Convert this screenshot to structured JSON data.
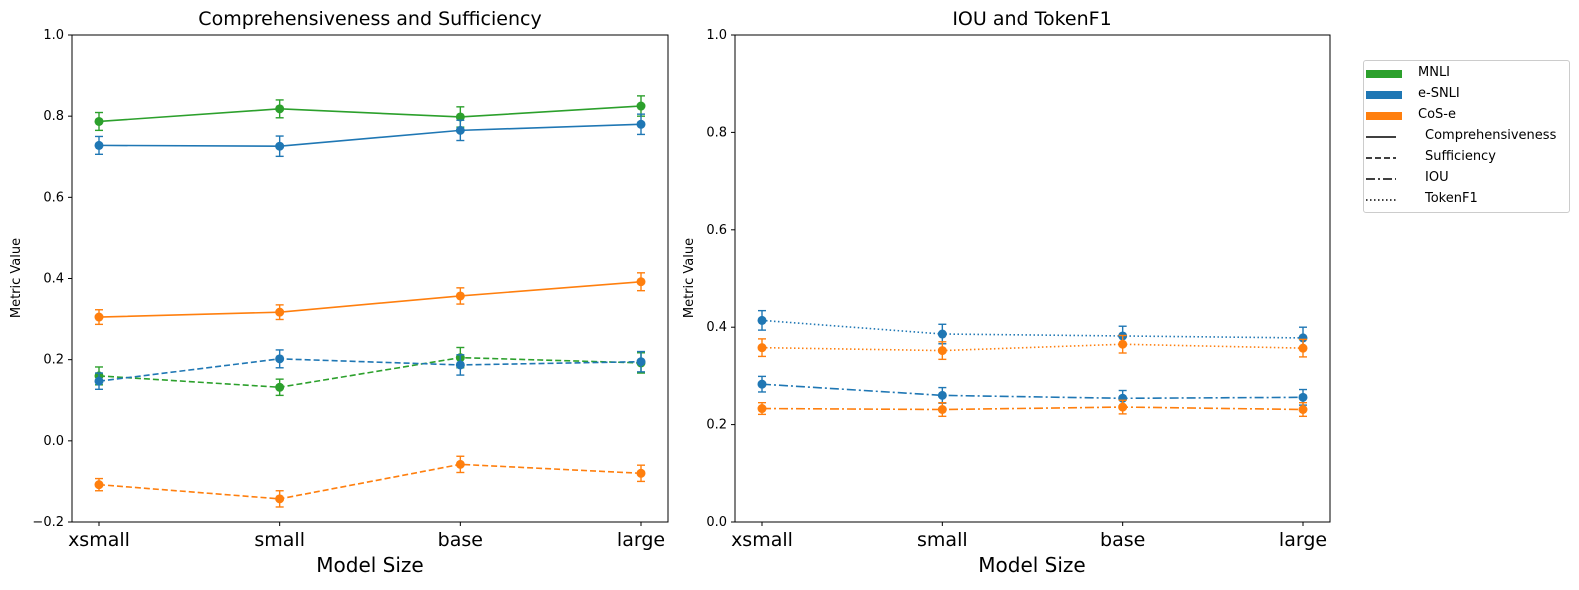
{
  "chart_data": [
    {
      "type": "line",
      "title": "Comprehensiveness and Sufficiency",
      "xlabel": "Model Size",
      "ylabel": "Metric Value",
      "categories": [
        "xsmall",
        "small",
        "base",
        "large"
      ],
      "ylim": [
        -0.2,
        1.0
      ],
      "yticks": [
        "−0.2",
        "0.0",
        "0.2",
        "0.4",
        "0.6",
        "0.8",
        "1.0"
      ],
      "ytick_values": [
        -0.2,
        0.0,
        0.2,
        0.4,
        0.6,
        0.8,
        1.0
      ],
      "grid": false,
      "series": [
        {
          "dataset": "MNLI",
          "metric": "Comprehensiveness",
          "color": "#2ca02c",
          "values": [
            0.787,
            0.818,
            0.798,
            0.825
          ],
          "errors": [
            0.022,
            0.022,
            0.025,
            0.025
          ]
        },
        {
          "dataset": "e-SNLI",
          "metric": "Comprehensiveness",
          "color": "#1f77b4",
          "values": [
            0.728,
            0.726,
            0.765,
            0.78
          ],
          "errors": [
            0.022,
            0.025,
            0.025,
            0.025
          ]
        },
        {
          "dataset": "CoS-e",
          "metric": "Comprehensiveness",
          "color": "#ff7f0e",
          "values": [
            0.305,
            0.317,
            0.357,
            0.392
          ],
          "errors": [
            0.018,
            0.018,
            0.02,
            0.022
          ]
        },
        {
          "dataset": "MNLI",
          "metric": "Sufficiency",
          "color": "#2ca02c",
          "values": [
            0.16,
            0.132,
            0.205,
            0.192
          ],
          "errors": [
            0.022,
            0.02,
            0.025,
            0.025
          ]
        },
        {
          "dataset": "e-SNLI",
          "metric": "Sufficiency",
          "color": "#1f77b4",
          "values": [
            0.147,
            0.202,
            0.187,
            0.195
          ],
          "errors": [
            0.02,
            0.022,
            0.025,
            0.025
          ]
        },
        {
          "dataset": "CoS-e",
          "metric": "Sufficiency",
          "color": "#ff7f0e",
          "values": [
            -0.108,
            -0.143,
            -0.058,
            -0.08
          ],
          "errors": [
            0.015,
            0.02,
            0.02,
            0.02
          ]
        }
      ]
    },
    {
      "type": "line",
      "title": "IOU and TokenF1",
      "xlabel": "Model Size",
      "ylabel": "Metric Value",
      "categories": [
        "xsmall",
        "small",
        "base",
        "large"
      ],
      "ylim": [
        0.0,
        1.0
      ],
      "yticks": [
        "0.0",
        "0.2",
        "0.4",
        "0.6",
        "0.8",
        "1.0"
      ],
      "ytick_values": [
        0.0,
        0.2,
        0.4,
        0.6,
        0.8,
        1.0
      ],
      "grid": false,
      "series": [
        {
          "dataset": "e-SNLI",
          "metric": "TokenF1",
          "color": "#1f77b4",
          "values": [
            0.414,
            0.386,
            0.382,
            0.378
          ],
          "errors": [
            0.02,
            0.02,
            0.02,
            0.022
          ]
        },
        {
          "dataset": "CoS-e",
          "metric": "TokenF1",
          "color": "#ff7f0e",
          "values": [
            0.358,
            0.352,
            0.365,
            0.357
          ],
          "errors": [
            0.018,
            0.018,
            0.018,
            0.018
          ]
        },
        {
          "dataset": "e-SNLI",
          "metric": "IOU",
          "color": "#1f77b4",
          "values": [
            0.283,
            0.26,
            0.254,
            0.256
          ],
          "errors": [
            0.016,
            0.016,
            0.016,
            0.016
          ]
        },
        {
          "dataset": "CoS-e",
          "metric": "IOU",
          "color": "#ff7f0e",
          "values": [
            0.233,
            0.231,
            0.236,
            0.231
          ],
          "errors": [
            0.012,
            0.014,
            0.014,
            0.014
          ]
        }
      ]
    }
  ],
  "legend": {
    "placement": "outside upper right",
    "datasets": [
      {
        "label": "MNLI",
        "color": "#2ca02c"
      },
      {
        "label": "e-SNLI",
        "color": "#1f77b4"
      },
      {
        "label": "CoS-e",
        "color": "#ff7f0e"
      }
    ],
    "metrics": [
      {
        "label": "Comprehensiveness",
        "style": "solid"
      },
      {
        "label": "Sufficiency",
        "style": "dashed"
      },
      {
        "label": "IOU",
        "style": "dashdot"
      },
      {
        "label": "TokenF1",
        "style": "dotted"
      }
    ]
  }
}
